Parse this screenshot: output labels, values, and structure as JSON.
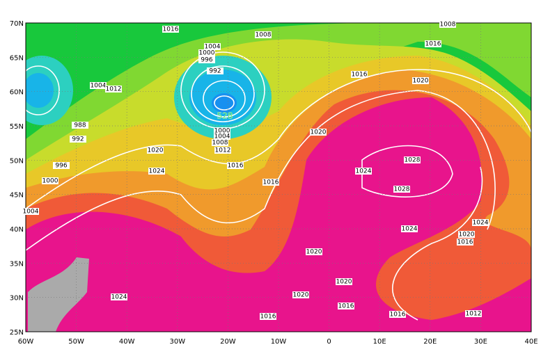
{
  "map": {
    "lat_labels": [
      "70N",
      "65N",
      "60N",
      "55N",
      "50N",
      "45N",
      "40N",
      "35N",
      "30N",
      "25N"
    ],
    "lon_labels": [
      "60W",
      "50W",
      "40W",
      "30W",
      "20W",
      "10W",
      "0",
      "10E",
      "20E",
      "30E",
      "40E"
    ],
    "isobar_labels": [
      "1016",
      "1008",
      "1004",
      "1000",
      "996",
      "992",
      "1004",
      "1012",
      "1016",
      "1020",
      "1016",
      "1008",
      "988",
      "992",
      "996",
      "1000",
      "1004",
      "1020",
      "1024",
      "1000",
      "1004",
      "1008",
      "1012",
      "1016",
      "1016",
      "1020",
      "1024",
      "1028",
      "1028",
      "1024",
      "1024",
      "1020",
      "1016",
      "1020",
      "1020",
      "1020",
      "1016",
      "1016",
      "1016",
      "1012",
      "1024"
    ],
    "height_label": "528"
  }
}
